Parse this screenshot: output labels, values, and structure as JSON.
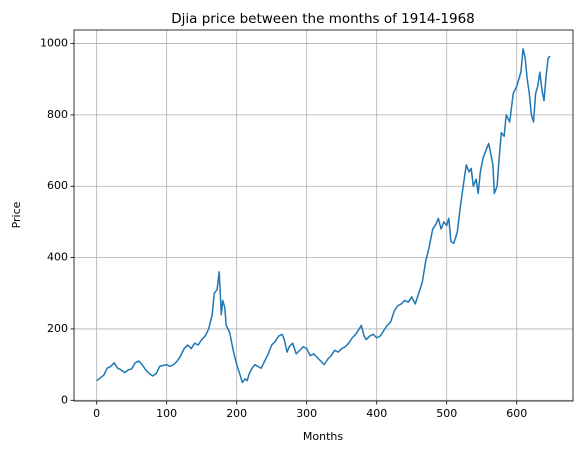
{
  "chart_data": {
    "type": "line",
    "title": "Djia price between the months of 1914-1968",
    "xlabel": "Months",
    "ylabel": "Price",
    "grid": true,
    "xlim": [
      -32.4,
      680.4
    ],
    "ylim": [
      -2,
      1038
    ],
    "xticks": [
      0,
      100,
      200,
      300,
      400,
      500,
      600
    ],
    "yticks": [
      0,
      200,
      400,
      600,
      800,
      1000
    ],
    "series": [
      {
        "name": "Price",
        "color": "#1f77b4",
        "x": [
          0,
          10,
          15,
          20,
          25,
          30,
          35,
          40,
          45,
          50,
          55,
          60,
          65,
          70,
          75,
          80,
          85,
          90,
          100,
          105,
          110,
          115,
          120,
          125,
          130,
          135,
          140,
          145,
          150,
          155,
          160,
          165,
          168,
          172,
          175,
          178,
          180,
          183,
          185,
          190,
          195,
          200,
          205,
          208,
          212,
          215,
          218,
          222,
          226,
          230,
          235,
          240,
          245,
          250,
          255,
          260,
          265,
          268,
          272,
          275,
          280,
          285,
          290,
          295,
          300,
          305,
          310,
          315,
          320,
          325,
          330,
          335,
          340,
          345,
          350,
          355,
          360,
          365,
          370,
          375,
          378,
          382,
          385,
          390,
          395,
          400,
          405,
          410,
          415,
          420,
          425,
          430,
          435,
          440,
          445,
          450,
          455,
          460,
          465,
          470,
          475,
          480,
          485,
          488,
          492,
          496,
          500,
          503,
          506,
          510,
          515,
          520,
          525,
          528,
          532,
          535,
          538,
          542,
          545,
          548,
          552,
          556,
          560,
          563,
          566,
          568,
          572,
          575,
          578,
          582,
          585,
          590,
          595,
          600,
          603,
          606,
          609,
          612,
          615,
          618,
          621,
          624,
          627,
          630,
          633,
          636,
          639,
          642,
          645,
          648
        ],
        "values": [
          55,
          70,
          90,
          95,
          105,
          90,
          85,
          78,
          85,
          88,
          105,
          110,
          100,
          85,
          75,
          68,
          75,
          95,
          100,
          95,
          100,
          110,
          125,
          145,
          155,
          145,
          160,
          155,
          170,
          180,
          200,
          240,
          300,
          310,
          360,
          240,
          280,
          260,
          210,
          190,
          140,
          100,
          70,
          50,
          60,
          55,
          75,
          90,
          100,
          95,
          90,
          110,
          130,
          155,
          165,
          180,
          185,
          170,
          135,
          150,
          160,
          130,
          140,
          150,
          145,
          125,
          130,
          120,
          110,
          100,
          115,
          125,
          140,
          135,
          145,
          150,
          160,
          175,
          185,
          200,
          210,
          180,
          170,
          180,
          185,
          175,
          180,
          195,
          210,
          220,
          250,
          265,
          270,
          280,
          275,
          290,
          270,
          300,
          330,
          390,
          430,
          480,
          495,
          510,
          480,
          500,
          490,
          510,
          445,
          440,
          470,
          550,
          620,
          660,
          640,
          650,
          600,
          620,
          580,
          640,
          680,
          700,
          720,
          690,
          660,
          580,
          600,
          680,
          750,
          740,
          800,
          780,
          860,
          880,
          900,
          920,
          985,
          960,
          900,
          860,
          800,
          780,
          860,
          880,
          920,
          870,
          840,
          910,
          960,
          965
        ]
      }
    ]
  }
}
